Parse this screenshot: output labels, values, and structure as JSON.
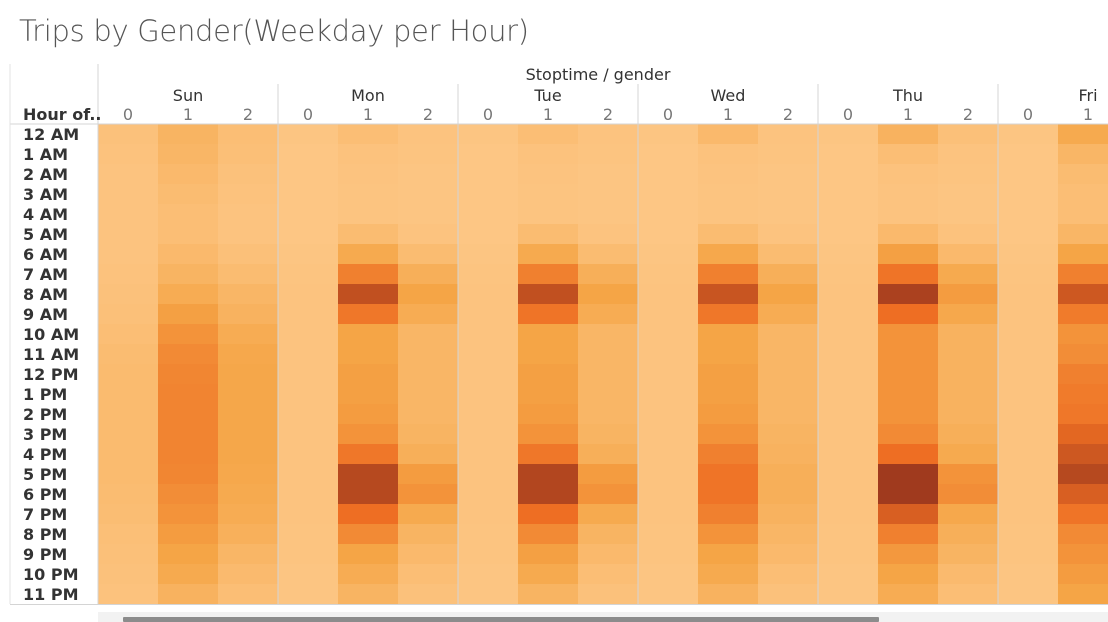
{
  "title": "Trips by Gender(Weekday per Hour)",
  "chart_data": {
    "type": "heatmap",
    "title": "Trips by Gender(Weekday per Hour)",
    "column_header": "Stoptime / gender",
    "row_header": "Hour of..",
    "days": [
      "Sun",
      "Mon",
      "Tue",
      "Wed",
      "Thu",
      "Fri"
    ],
    "genders": [
      "0",
      "1",
      "2"
    ],
    "hours": [
      "12 AM",
      "1 AM",
      "2 AM",
      "3 AM",
      "4 AM",
      "5 AM",
      "6 AM",
      "7 AM",
      "8 AM",
      "9 AM",
      "10 AM",
      "11 AM",
      "12 PM",
      "1 PM",
      "2 PM",
      "3 PM",
      "4 PM",
      "5 PM",
      "6 PM",
      "7 PM",
      "8 PM",
      "9 PM",
      "10 PM",
      "11 PM"
    ],
    "value_scale": "relative intensity 0 to 1",
    "color_range": [
      "#fdc888",
      "#a03a1e"
    ],
    "values": {
      "Sun": {
        "0": [
          0.07,
          0.06,
          0.05,
          0.05,
          0.05,
          0.05,
          0.05,
          0.06,
          0.07,
          0.08,
          0.1,
          0.12,
          0.13,
          0.13,
          0.13,
          0.13,
          0.13,
          0.13,
          0.12,
          0.11,
          0.09,
          0.08,
          0.07,
          0.06
        ],
        "1": [
          0.2,
          0.18,
          0.15,
          0.12,
          0.1,
          0.1,
          0.15,
          0.2,
          0.28,
          0.38,
          0.45,
          0.5,
          0.52,
          0.53,
          0.53,
          0.53,
          0.53,
          0.52,
          0.48,
          0.45,
          0.4,
          0.35,
          0.3,
          0.22
        ],
        "2": [
          0.1,
          0.09,
          0.07,
          0.06,
          0.05,
          0.05,
          0.08,
          0.12,
          0.18,
          0.22,
          0.28,
          0.32,
          0.33,
          0.33,
          0.33,
          0.33,
          0.33,
          0.32,
          0.3,
          0.28,
          0.24,
          0.18,
          0.14,
          0.1
        ]
      },
      "Mon": {
        "0": [
          0.03,
          0.02,
          0.02,
          0.02,
          0.02,
          0.02,
          0.03,
          0.04,
          0.05,
          0.05,
          0.05,
          0.05,
          0.05,
          0.05,
          0.05,
          0.05,
          0.05,
          0.05,
          0.05,
          0.05,
          0.04,
          0.04,
          0.03,
          0.03
        ],
        "1": [
          0.1,
          0.06,
          0.05,
          0.04,
          0.04,
          0.12,
          0.3,
          0.55,
          0.85,
          0.6,
          0.35,
          0.35,
          0.38,
          0.38,
          0.4,
          0.45,
          0.6,
          0.9,
          0.9,
          0.65,
          0.5,
          0.35,
          0.28,
          0.2
        ],
        "2": [
          0.05,
          0.04,
          0.03,
          0.03,
          0.03,
          0.05,
          0.12,
          0.25,
          0.35,
          0.28,
          0.18,
          0.18,
          0.18,
          0.18,
          0.18,
          0.2,
          0.25,
          0.4,
          0.45,
          0.3,
          0.2,
          0.15,
          0.1,
          0.07
        ]
      },
      "Tue": {
        "0": [
          0.03,
          0.02,
          0.02,
          0.02,
          0.02,
          0.02,
          0.03,
          0.04,
          0.05,
          0.05,
          0.05,
          0.05,
          0.05,
          0.05,
          0.05,
          0.05,
          0.05,
          0.05,
          0.05,
          0.05,
          0.04,
          0.04,
          0.03,
          0.03
        ],
        "1": [
          0.1,
          0.06,
          0.05,
          0.04,
          0.04,
          0.12,
          0.3,
          0.55,
          0.85,
          0.62,
          0.35,
          0.35,
          0.38,
          0.38,
          0.4,
          0.45,
          0.6,
          0.92,
          0.92,
          0.65,
          0.5,
          0.38,
          0.3,
          0.2
        ],
        "2": [
          0.05,
          0.04,
          0.03,
          0.03,
          0.03,
          0.05,
          0.12,
          0.25,
          0.35,
          0.28,
          0.18,
          0.18,
          0.18,
          0.18,
          0.18,
          0.2,
          0.25,
          0.4,
          0.45,
          0.3,
          0.2,
          0.15,
          0.1,
          0.07
        ]
      },
      "Wed": {
        "0": [
          0.03,
          0.02,
          0.02,
          0.02,
          0.02,
          0.02,
          0.03,
          0.04,
          0.05,
          0.05,
          0.05,
          0.05,
          0.05,
          0.05,
          0.05,
          0.05,
          0.05,
          0.05,
          0.05,
          0.05,
          0.04,
          0.04,
          0.03,
          0.03
        ],
        "1": [
          0.15,
          0.06,
          0.05,
          0.04,
          0.04,
          0.12,
          0.32,
          0.55,
          0.82,
          0.6,
          0.35,
          0.35,
          0.38,
          0.38,
          0.4,
          0.45,
          0.55,
          0.62,
          0.62,
          0.55,
          0.45,
          0.35,
          0.3,
          0.22
        ],
        "2": [
          0.05,
          0.04,
          0.03,
          0.03,
          0.03,
          0.05,
          0.12,
          0.25,
          0.35,
          0.28,
          0.18,
          0.18,
          0.18,
          0.18,
          0.18,
          0.2,
          0.22,
          0.25,
          0.25,
          0.22,
          0.18,
          0.15,
          0.1,
          0.07
        ]
      },
      "Thu": {
        "0": [
          0.03,
          0.02,
          0.02,
          0.02,
          0.02,
          0.02,
          0.03,
          0.04,
          0.05,
          0.05,
          0.05,
          0.05,
          0.05,
          0.05,
          0.05,
          0.05,
          0.05,
          0.05,
          0.05,
          0.05,
          0.04,
          0.04,
          0.03,
          0.03
        ],
        "1": [
          0.22,
          0.1,
          0.06,
          0.05,
          0.05,
          0.15,
          0.38,
          0.62,
          0.95,
          0.65,
          0.45,
          0.45,
          0.45,
          0.45,
          0.45,
          0.5,
          0.65,
          1.0,
          1.0,
          0.75,
          0.55,
          0.42,
          0.35,
          0.28
        ],
        "2": [
          0.08,
          0.05,
          0.04,
          0.03,
          0.03,
          0.06,
          0.15,
          0.3,
          0.4,
          0.32,
          0.22,
          0.22,
          0.22,
          0.22,
          0.22,
          0.25,
          0.3,
          0.45,
          0.48,
          0.32,
          0.25,
          0.2,
          0.14,
          0.1
        ]
      },
      "Fri": {
        "0": [
          0.03,
          0.02,
          0.02,
          0.02,
          0.02,
          0.02,
          0.03,
          0.04,
          0.05,
          0.05,
          0.05,
          0.05,
          0.05,
          0.05,
          0.05,
          0.05,
          0.05,
          0.05,
          0.05,
          0.05,
          0.04,
          0.04,
          0.03,
          0.03
        ],
        "1": [
          0.3,
          0.18,
          0.12,
          0.1,
          0.1,
          0.18,
          0.35,
          0.55,
          0.8,
          0.58,
          0.45,
          0.48,
          0.55,
          0.58,
          0.6,
          0.7,
          0.8,
          0.9,
          0.75,
          0.62,
          0.5,
          0.45,
          0.4,
          0.35
        ]
      }
    }
  }
}
